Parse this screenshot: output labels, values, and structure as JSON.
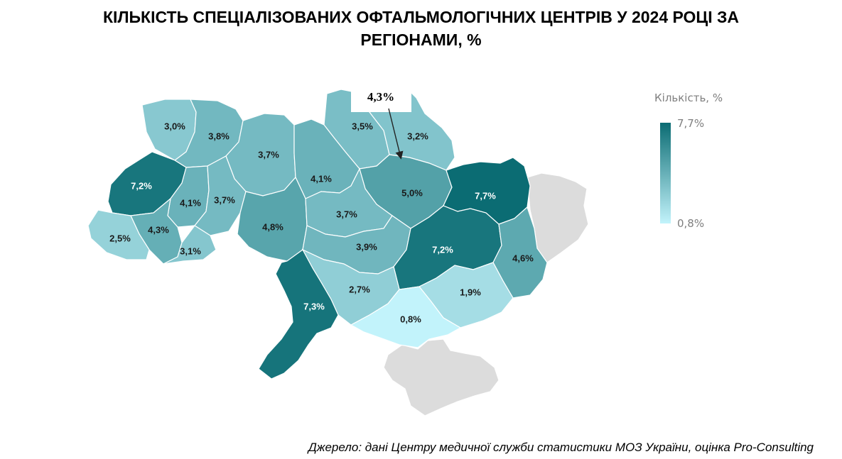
{
  "title_lines": [
    "КІЛЬКІСТЬ СПЕЦІАЛІЗОВАНИХ ОФТАЛЬМОЛОГІЧНИХ ЦЕНТРІВ У 2024 РОЦІ ЗА",
    "РЕГІОНАМИ, %"
  ],
  "source": "Джерело: дані Центру медичної служби статистики МОЗ України, оцінка Pro-Consulting",
  "legend": {
    "title": "Кількість, %",
    "max_label": "7,7%",
    "min_label": "0,8%",
    "max_value": 7.7,
    "min_value": 0.8,
    "color_low": "#c2f3fb",
    "color_high": "#0b6c73",
    "no_data_color": "#dcdcdc"
  },
  "callout": {
    "label": "4,3%",
    "value": 4.3
  },
  "regions": [
    {
      "label": "3,0%",
      "value": 3.0
    },
    {
      "label": "3,8%",
      "value": 3.8
    },
    {
      "label": "3,7%",
      "value": 3.7
    },
    {
      "label": "3,5%",
      "value": 3.5
    },
    {
      "label": "3,2%",
      "value": 3.2
    },
    {
      "label": "7,2%",
      "value": 7.2
    },
    {
      "label": "4,1%",
      "value": 4.1
    },
    {
      "label": "3,7%",
      "value": 3.7
    },
    {
      "label": "4,1%",
      "value": 4.1
    },
    {
      "label": "5,0%",
      "value": 5.0
    },
    {
      "label": "7,7%",
      "value": 7.7
    },
    {
      "label": "4,3%",
      "value": 4.3
    },
    {
      "label": "2,5%",
      "value": 2.5
    },
    {
      "label": "4,8%",
      "value": 4.8
    },
    {
      "label": "3,7%",
      "value": 3.7
    },
    {
      "label": "3,1%",
      "value": 3.1
    },
    {
      "label": "3,9%",
      "value": 3.9
    },
    {
      "label": "7,2%",
      "value": 7.2
    },
    {
      "label": "4,6%",
      "value": 4.6
    },
    {
      "label": "2,7%",
      "value": 2.7
    },
    {
      "label": "1,9%",
      "value": 1.9
    },
    {
      "label": "7,3%",
      "value": 7.3
    },
    {
      "label": "0,8%",
      "value": 0.8
    }
  ]
}
